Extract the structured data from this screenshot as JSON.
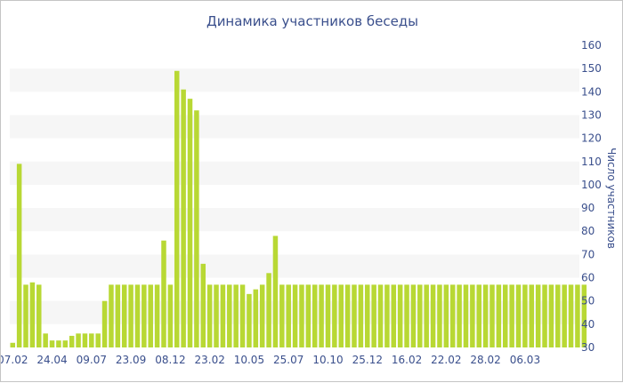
{
  "chart_data": {
    "type": "bar",
    "title": "Динамика участников беседы",
    "xlabel": "",
    "ylabel": "Число участников",
    "ylim": [
      30,
      160
    ],
    "y_ticks": [
      30,
      40,
      50,
      60,
      70,
      80,
      90,
      100,
      110,
      120,
      130,
      140,
      150,
      160
    ],
    "y_axis_position": "right",
    "x_tick_labels": [
      "07.02",
      "24.04",
      "09.07",
      "23.09",
      "08.12",
      "23.02",
      "10.05",
      "25.07",
      "10.10",
      "25.12",
      "16.02",
      "22.02",
      "28.02",
      "06.03"
    ],
    "x_tick_bar_index": [
      0,
      6,
      12,
      18,
      24,
      30,
      36,
      42,
      48,
      54,
      60,
      66,
      72,
      78
    ],
    "grid": "alternating horizontal bands",
    "bar_color": "#b8d834",
    "band_color": "#f6f6f6",
    "values": [
      32,
      109,
      57,
      58,
      57,
      36,
      33,
      33,
      33,
      35,
      36,
      36,
      36,
      36,
      50,
      57,
      57,
      57,
      57,
      57,
      57,
      57,
      57,
      76,
      57,
      149,
      141,
      137,
      132,
      66,
      57,
      57,
      57,
      57,
      57,
      57,
      53,
      55,
      57,
      62,
      78,
      57,
      57,
      57,
      57,
      57,
      57,
      57,
      57,
      57,
      57,
      57,
      57,
      57,
      57,
      57,
      57,
      57,
      57,
      57,
      57,
      57,
      57,
      57,
      57,
      57,
      57,
      57,
      57,
      57,
      57,
      57,
      57,
      57,
      57,
      57,
      57,
      57,
      57,
      57,
      57,
      57,
      57,
      57,
      57,
      57,
      57,
      57
    ]
  }
}
